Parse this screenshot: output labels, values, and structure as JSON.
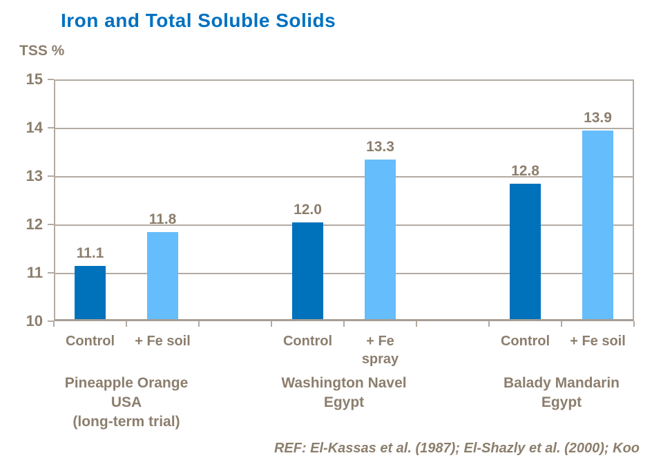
{
  "title": "Iron and Total Soluble Solids",
  "y_axis_label": "TSS %",
  "footer": "REF: El-Kassas et al. (1987); El-Shazly et al. (2000); Koo",
  "colors": {
    "title": "#0070C0",
    "bar_dark": "#0072BC",
    "bar_light": "#66BDFB",
    "text": "#8C7E6D",
    "axis": "#B3AAA2"
  },
  "chart_data": {
    "type": "bar",
    "title": "Iron and Total Soluble Solids",
    "ylabel": "TSS %",
    "ylim": [
      10,
      15
    ],
    "yticks": [
      10,
      11,
      12,
      13,
      14,
      15
    ],
    "grid": true,
    "legend_position": "none",
    "bar_color_meaning": {
      "bar_dark": "Control",
      "bar_light": "+ Fe treatment"
    },
    "groups": [
      {
        "group_label_lines": [
          "Pineapple Orange",
          "USA",
          "(long-term trial)"
        ],
        "bars": [
          {
            "category_lines": [
              "Control"
            ],
            "value": 11.1,
            "value_label": "11.1",
            "color": "bar_dark"
          },
          {
            "category_lines": [
              "+ Fe soil"
            ],
            "value": 11.8,
            "value_label": "11.8",
            "color": "bar_light"
          }
        ]
      },
      {
        "group_label_lines": [
          "Washington Navel",
          "Egypt"
        ],
        "bars": [
          {
            "category_lines": [
              "Control"
            ],
            "value": 12.0,
            "value_label": "12.0",
            "color": "bar_dark"
          },
          {
            "category_lines": [
              "+ Fe",
              "spray"
            ],
            "value": 13.3,
            "value_label": "13.3",
            "color": "bar_light"
          }
        ]
      },
      {
        "group_label_lines": [
          "Balady Mandarin",
          "Egypt"
        ],
        "bars": [
          {
            "category_lines": [
              "Control"
            ],
            "value": 12.8,
            "value_label": "12.8",
            "color": "bar_dark"
          },
          {
            "category_lines": [
              "+ Fe soil"
            ],
            "value": 13.9,
            "value_label": "13.9",
            "color": "bar_light"
          }
        ]
      }
    ]
  }
}
